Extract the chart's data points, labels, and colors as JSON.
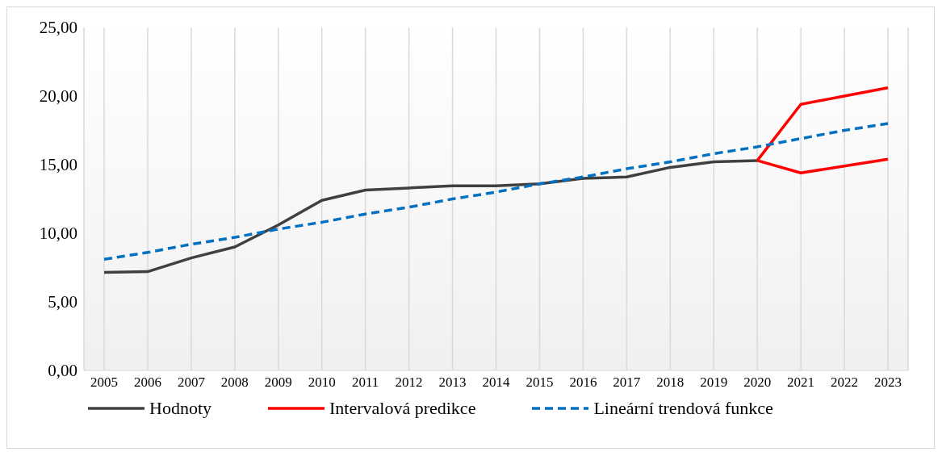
{
  "chart_data": {
    "type": "line",
    "categories": [
      "2005",
      "2006",
      "2007",
      "2008",
      "2009",
      "2010",
      "2011",
      "2012",
      "2013",
      "2014",
      "2015",
      "2016",
      "2017",
      "2018",
      "2019",
      "2020",
      "2021",
      "2022",
      "2023"
    ],
    "series": [
      {
        "name": "Hodnoty",
        "color": "#404040",
        "values": [
          7.15,
          7.2,
          8.2,
          9.0,
          10.6,
          12.4,
          13.15,
          13.3,
          13.45,
          13.45,
          13.6,
          14.0,
          14.1,
          14.8,
          15.2,
          15.3,
          null,
          null,
          null
        ]
      },
      {
        "name": "Intervalová predikce",
        "color": "#ff0000",
        "values": [
          null,
          null,
          null,
          null,
          null,
          null,
          null,
          null,
          null,
          null,
          null,
          null,
          null,
          null,
          null,
          15.3,
          19.4,
          20.0,
          20.6
        ]
      },
      {
        "color": "#ff0000",
        "values": [
          null,
          null,
          null,
          null,
          null,
          null,
          null,
          null,
          null,
          null,
          null,
          null,
          null,
          null,
          null,
          15.3,
          14.4,
          14.9,
          15.4
        ]
      },
      {
        "name": "Lineární trendová funkce",
        "color": "#0070c0",
        "line_style": "dashed",
        "values": [
          8.1,
          8.6,
          9.2,
          9.7,
          10.3,
          10.8,
          11.4,
          11.9,
          12.5,
          13.0,
          13.6,
          14.1,
          14.7,
          15.2,
          15.8,
          16.3,
          16.9,
          17.5,
          18.0
        ]
      }
    ],
    "ylim": [
      0,
      25
    ],
    "yticks": [
      {
        "value": 0,
        "label": "0,00"
      },
      {
        "value": 5,
        "label": "5,00"
      },
      {
        "value": 10,
        "label": "10,00"
      },
      {
        "value": 15,
        "label": "15,00"
      },
      {
        "value": 20,
        "label": "20,00"
      },
      {
        "value": 25,
        "label": "25,00"
      }
    ],
    "grid": "x",
    "legend": "bottom",
    "marker": "none",
    "line_style": "solid"
  }
}
